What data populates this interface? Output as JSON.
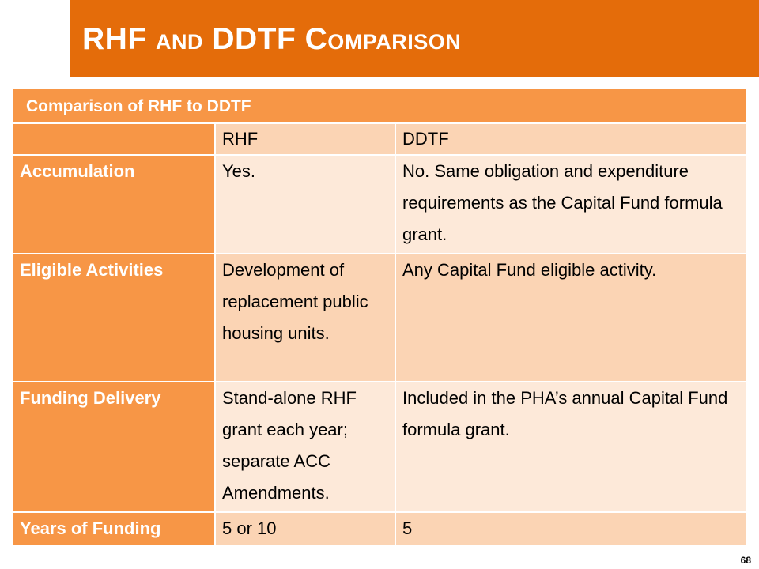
{
  "slide": {
    "title": "RHF and DDTF Comparison",
    "page_number": "68"
  },
  "table": {
    "caption": "Comparison of RHF to DDTF",
    "columns": [
      "RHF",
      "DDTF"
    ],
    "rows": [
      {
        "label": "Accumulation",
        "rhf": "Yes.",
        "ddtf": "No.  Same obligation and expenditure requirements as the Capital Fund formula grant."
      },
      {
        "label": "Eligible Activities",
        "rhf": "Development of replacement public housing units.",
        "ddtf": "Any Capital Fund eligible activity."
      },
      {
        "label": "Funding Delivery",
        "rhf": "Stand-alone RHF grant each year; separate ACC Amendments.",
        "ddtf": "Included in the PHA’s annual Capital Fund formula grant."
      },
      {
        "label": "Years of Funding",
        "rhf": "5 or 10",
        "ddtf": "5"
      }
    ]
  }
}
